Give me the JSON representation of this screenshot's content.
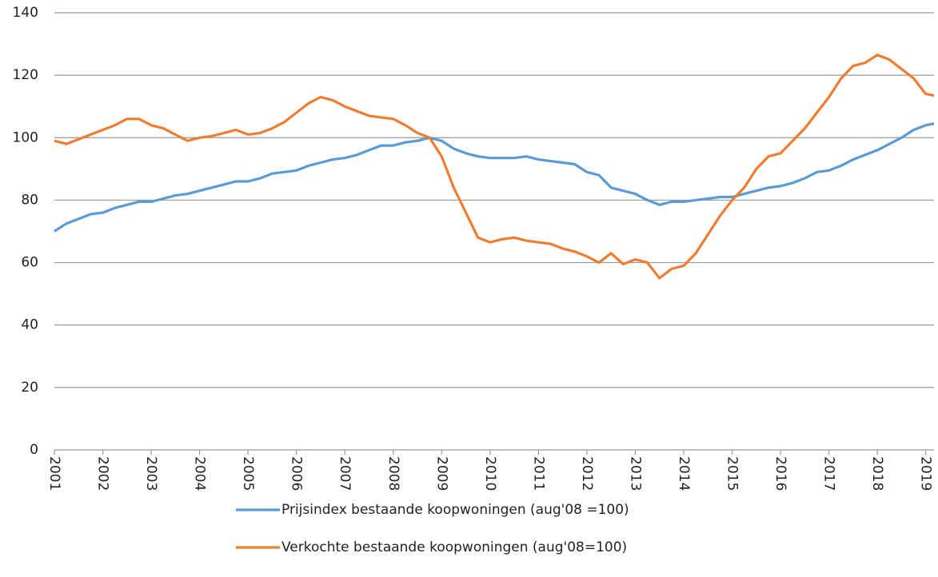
{
  "chart_data": {
    "type": "line",
    "x": [
      2001,
      2001.25,
      2001.5,
      2001.75,
      2002,
      2002.25,
      2002.5,
      2002.75,
      2003,
      2003.25,
      2003.5,
      2003.75,
      2004,
      2004.25,
      2004.5,
      2004.75,
      2005,
      2005.25,
      2005.5,
      2005.75,
      2006,
      2006.25,
      2006.5,
      2006.75,
      2007,
      2007.25,
      2007.5,
      2007.75,
      2008,
      2008.25,
      2008.5,
      2008.75,
      2009,
      2009.25,
      2009.5,
      2009.75,
      2010,
      2010.25,
      2010.5,
      2010.75,
      2011,
      2011.25,
      2011.5,
      2011.75,
      2012,
      2012.25,
      2012.5,
      2012.75,
      2013,
      2013.25,
      2013.5,
      2013.75,
      2014,
      2014.25,
      2014.5,
      2014.75,
      2015,
      2015.25,
      2015.5,
      2015.75,
      2016,
      2016.25,
      2016.5,
      2016.75,
      2017,
      2017.25,
      2017.5,
      2017.75,
      2018,
      2018.25,
      2018.5,
      2018.75,
      2019,
      2019.17
    ],
    "series": [
      {
        "name": "Prijsindex bestaande koopwoningen (aug'08 =100)",
        "color": "#5b9bd5",
        "values": [
          70,
          72.5,
          74,
          75.5,
          76,
          77.5,
          78.5,
          79.5,
          79.5,
          80.5,
          81.5,
          82,
          83,
          84,
          85,
          86,
          86,
          87,
          88.5,
          89,
          89.5,
          91,
          92,
          93,
          93.5,
          94.5,
          96,
          97.5,
          97.5,
          98.5,
          99,
          100,
          99,
          96.5,
          95,
          94,
          93.5,
          93.5,
          93.5,
          94,
          93,
          92.5,
          92,
          91.5,
          89,
          88,
          84,
          83,
          82,
          80,
          78.5,
          79.5,
          79.5,
          80,
          80.5,
          81,
          81,
          82,
          83,
          84,
          84.5,
          85.5,
          87,
          89,
          89.5,
          91,
          93,
          94.5,
          96,
          98,
          100,
          102.5,
          104,
          104.5
        ]
      },
      {
        "name": "Verkochte bestaande koopwoningen (aug'08=100)",
        "color": "#ed7d31",
        "values": [
          99,
          98,
          99.5,
          101,
          102.5,
          104,
          106,
          106,
          104,
          103,
          101,
          99,
          100,
          100.5,
          101.5,
          102.5,
          101,
          101.5,
          103,
          105,
          108,
          111,
          113,
          112,
          110,
          108.5,
          107,
          106.5,
          106,
          104,
          101.5,
          100,
          94,
          84,
          76,
          68,
          66.5,
          67.5,
          68,
          67,
          66.5,
          66,
          64.5,
          63.5,
          62,
          60,
          63,
          59.5,
          61,
          60,
          55,
          58,
          59,
          63,
          69,
          75,
          80,
          84,
          90,
          94,
          95,
          99,
          103,
          108,
          113,
          119,
          123,
          124,
          126.5,
          125,
          122,
          119,
          114,
          113.5
        ]
      }
    ],
    "xlim": [
      2001,
      2019.17
    ],
    "xticks": [
      2001,
      2002,
      2003,
      2004,
      2005,
      2006,
      2007,
      2008,
      2009,
      2010,
      2011,
      2012,
      2013,
      2014,
      2015,
      2016,
      2017,
      2018,
      2019
    ],
    "ylim": [
      0,
      140
    ],
    "yticks": [
      0,
      20,
      40,
      60,
      80,
      100,
      120,
      140
    ],
    "grid": true,
    "legend": "bottom"
  }
}
